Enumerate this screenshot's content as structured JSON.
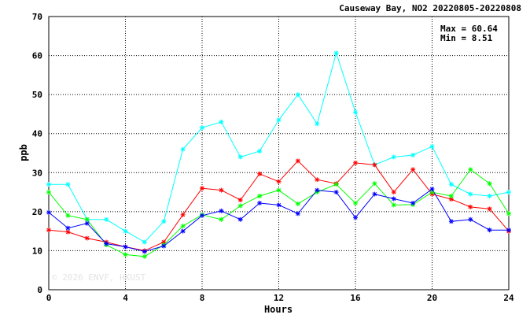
{
  "chart_data": {
    "type": "line",
    "title": "Causeway Bay, NO2 20220805-20220808",
    "xlabel": "Hours",
    "ylabel": "ppb",
    "xlim": [
      0,
      24
    ],
    "ylim": [
      0,
      70
    ],
    "xticks": [
      0,
      4,
      8,
      12,
      16,
      20,
      24
    ],
    "yticks": [
      0,
      10,
      20,
      30,
      40,
      50,
      60,
      70
    ],
    "grid": true,
    "x": [
      0,
      1,
      2,
      3,
      4,
      5,
      6,
      7,
      8,
      9,
      10,
      11,
      12,
      13,
      14,
      15,
      16,
      17,
      18,
      19,
      20,
      21,
      22,
      23,
      24
    ],
    "series": [
      {
        "color": "#00ffff",
        "values": [
          27.0,
          27.0,
          18.0,
          18.0,
          15.0,
          12.2,
          17.5,
          36.0,
          41.5,
          43.0,
          34.0,
          35.5,
          43.5,
          50.0,
          42.5,
          60.64,
          45.5,
          32.0,
          34.0,
          34.5,
          36.7,
          27.0,
          24.5,
          24.0,
          25.0
        ]
      },
      {
        "color": "#ff0000",
        "values": [
          15.3,
          14.8,
          13.2,
          12.2,
          11.0,
          10.0,
          12.2,
          19.2,
          26.0,
          25.5,
          23.0,
          29.7,
          27.7,
          33.0,
          28.2,
          27.2,
          32.5,
          32.0,
          25.0,
          30.8,
          24.5,
          23.2,
          21.2,
          20.7,
          15.0
        ]
      },
      {
        "color": "#00ff00",
        "values": [
          25.0,
          19.0,
          18.0,
          11.5,
          9.0,
          8.51,
          11.5,
          16.3,
          19.2,
          18.0,
          21.5,
          24.0,
          25.5,
          22.0,
          25.0,
          27.0,
          22.2,
          27.2,
          21.7,
          21.8,
          25.0,
          24.0,
          30.8,
          27.2,
          19.5
        ]
      },
      {
        "color": "#0000ff",
        "values": [
          19.8,
          15.8,
          17.0,
          11.8,
          11.0,
          9.8,
          11.2,
          15.0,
          19.0,
          20.2,
          18.0,
          22.2,
          21.7,
          19.5,
          25.5,
          25.0,
          18.5,
          24.5,
          23.3,
          22.2,
          25.8,
          17.5,
          18.0,
          15.3,
          15.3
        ]
      }
    ],
    "stats": {
      "max_text": "Max = 60.64",
      "min_text": "Min =  8.51"
    },
    "watermark": "© 2026  ENVF, HKUST"
  }
}
